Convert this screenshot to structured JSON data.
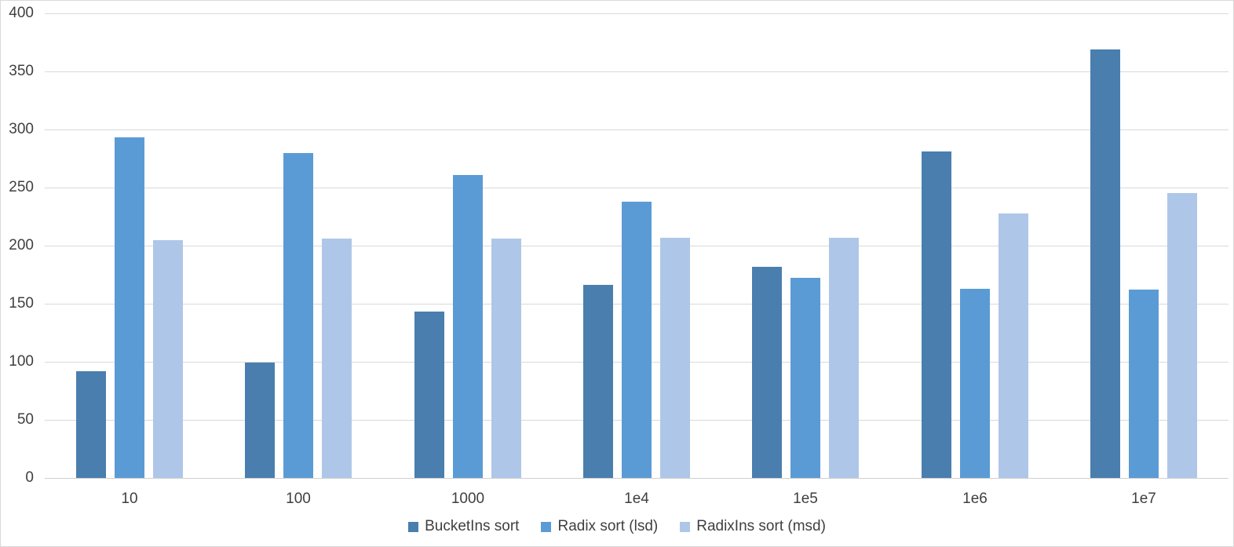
{
  "chart_data": {
    "type": "bar",
    "title": "",
    "xlabel": "",
    "ylabel": "",
    "categories": [
      "10",
      "100",
      "1000",
      "1e4",
      "1e5",
      "1e6",
      "1e7"
    ],
    "series": [
      {
        "name": "BucketIns sort",
        "color": "#4a7eae",
        "values": [
          92,
          99,
          143,
          166,
          182,
          281,
          369
        ]
      },
      {
        "name": "Radix sort (lsd)",
        "color": "#5b9bd5",
        "values": [
          293,
          280,
          261,
          238,
          172,
          163,
          162
        ]
      },
      {
        "name": "RadixIns sort (msd)",
        "color": "#aec7e8",
        "values": [
          205,
          206,
          206,
          207,
          207,
          228,
          245
        ]
      }
    ],
    "ylim": [
      0,
      400
    ],
    "ytick_step": 50,
    "grid": true,
    "legend_position": "bottom"
  },
  "colors": {
    "background": "#ffffff",
    "border": "#d9d9d9",
    "gridline": "#d9d9d9",
    "axis_line": "#cfcfcf",
    "label_text": "#3f3f3f"
  }
}
